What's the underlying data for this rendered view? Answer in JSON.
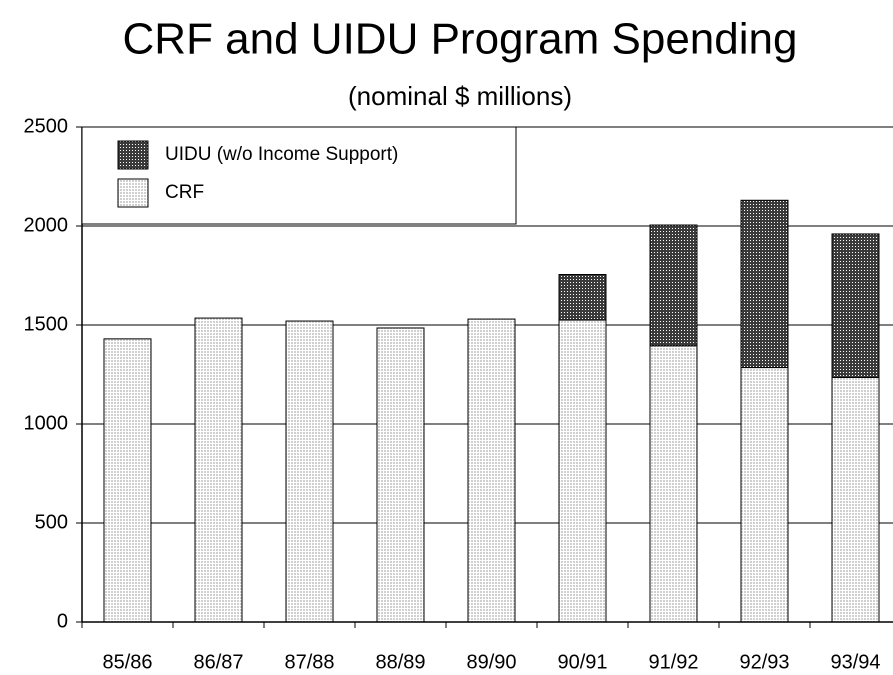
{
  "chart_data": {
    "type": "stacked_bar",
    "title": "CRF and UIDU Program Spending",
    "subtitle": "(nominal $ millions)",
    "categories": [
      "85/86",
      "86/87",
      "87/88",
      "88/89",
      "89/90",
      "90/91",
      "91/92",
      "92/93",
      "93/94"
    ],
    "series": [
      {
        "name": "CRF",
        "color": "#d0d0d0",
        "values": [
          1430,
          1535,
          1520,
          1485,
          1530,
          1525,
          1395,
          1285,
          1235
        ]
      },
      {
        "name": "UIDU (w/o Income Support)",
        "color": "#3a3a3a",
        "values": [
          null,
          null,
          null,
          null,
          null,
          230,
          610,
          845,
          725
        ]
      }
    ],
    "ylim": [
      0,
      2500
    ],
    "yticks": [
      0,
      500,
      1000,
      1500,
      2000,
      2500
    ],
    "grid": true,
    "legend": "top-left"
  }
}
